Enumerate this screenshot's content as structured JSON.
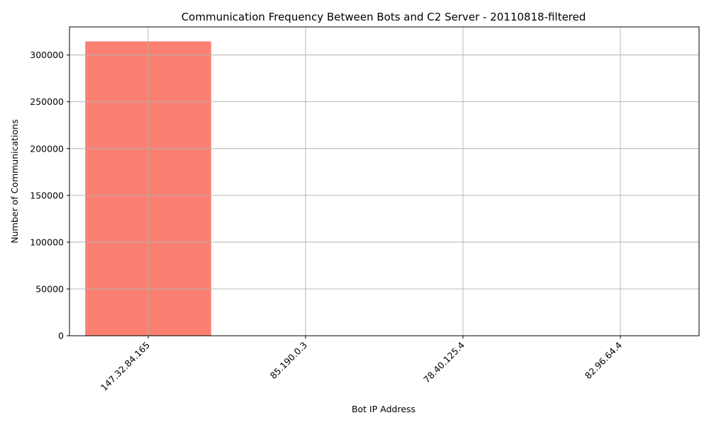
{
  "chart_data": {
    "type": "bar",
    "title": "Communication Frequency Between Bots and C2 Server - 20110818-filtered",
    "xlabel": "Bot IP Address",
    "ylabel": "Number of Communications",
    "categories": [
      "147.32.84.165",
      "85.190.0.3",
      "78.40.125.4",
      "82.96.64.4"
    ],
    "values": [
      314500,
      2,
      1,
      1
    ],
    "ylim": [
      0,
      330000
    ],
    "yticks": [
      0,
      50000,
      100000,
      150000,
      200000,
      250000,
      300000
    ],
    "ytick_labels": [
      "0",
      "50000",
      "100000",
      "150000",
      "200000",
      "250000",
      "300000"
    ],
    "grid": true,
    "bar_color": "#fa8072",
    "grid_color": "#b0b0b0"
  }
}
